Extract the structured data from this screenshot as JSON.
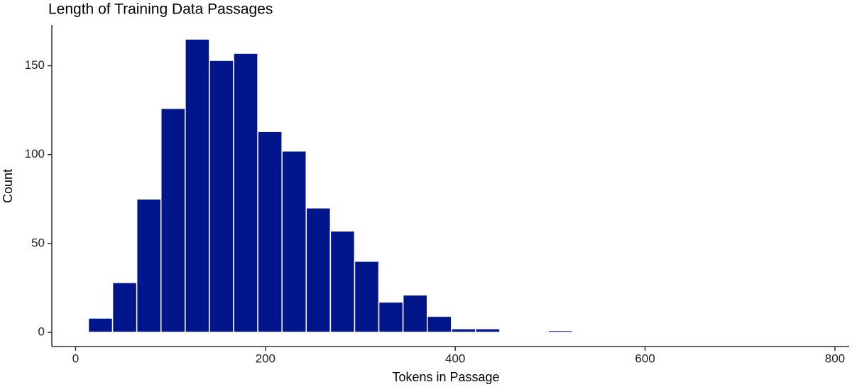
{
  "chart_data": {
    "type": "histogram",
    "title": "Length of Training Data Passages",
    "x_label": "Tokens in Passage",
    "y_label": "Count",
    "bins": [
      13.5,
      39,
      64.5,
      90,
      115.5,
      141,
      166.5,
      192,
      217.5,
      243,
      268.5,
      294,
      319.5,
      345,
      370.5,
      396,
      421.5,
      447,
      472.5,
      498,
      523.5,
      549,
      574.5,
      600,
      625.5,
      651,
      676.5,
      702,
      727.5,
      753,
      778.5
    ],
    "values": [
      8,
      28,
      75,
      126,
      165,
      153,
      157,
      113,
      102,
      70,
      57,
      40,
      17,
      21,
      9,
      2,
      2,
      0,
      0,
      1,
      0,
      0,
      0,
      0,
      0,
      0,
      0,
      0,
      0,
      0
    ],
    "color": "#00168a",
    "xlim": [
      -25,
      815
    ],
    "xticks": [
      0,
      200,
      400,
      600,
      800
    ],
    "ylim": [
      -8,
      173
    ],
    "yticks": [
      0,
      50,
      100,
      150
    ]
  }
}
